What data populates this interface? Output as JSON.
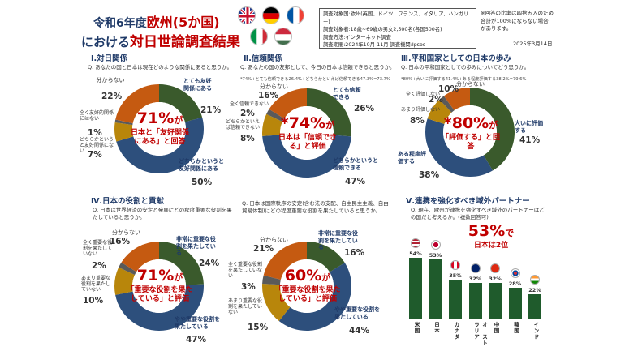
{
  "header": {
    "title_prefix": "令和6年度",
    "title_highlight": "欧州(5か国)",
    "title2_prefix": "における",
    "title2_highlight": "対日世論調査結果",
    "flags": [
      "uk-flag",
      "germany-flag",
      "france-flag",
      "italy-flag",
      "hungary-flag"
    ]
  },
  "survey_info": {
    "line1": "調査対象国:欧州(英国、ドイツ、フランス、イタリア、ハンガリー)",
    "line2": "調査対象者:18歳~69歳の男女2,500名(各国500名)",
    "line3": "調査方法:インターネット調査",
    "line4": "調査期間:2024年10月-11月 調査機関:Ipsos"
  },
  "note": "※回答の比率は四捨五入のため合計が100%にならない場合があります。",
  "date": "2025年3月14日",
  "sections": {
    "s1": {
      "title": "Ⅰ.対日関係",
      "question": "Q. あなたの国と日本は現在どのような関係にあると思うか。",
      "center_big": "71%",
      "center_suffix": "が",
      "center_text": "日本と「友好関係にある」と回答",
      "segments": [
        {
          "label": "とても友好関係にある",
          "pct": "21%",
          "color": "#3a5a2c"
        },
        {
          "label": "どちらかというと友好関係にある",
          "pct": "50%",
          "color": "#2d4f7c"
        },
        {
          "label": "どちらかというと友好関係にない",
          "pct": "7%",
          "color": "#b8860b"
        },
        {
          "label": "全く友好的関係にはない",
          "pct": "1%",
          "color": "#5a5a5a"
        },
        {
          "label": "分からない",
          "pct": "22%",
          "color": "#c55a11"
        }
      ]
    },
    "s2": {
      "title": "Ⅱ.信頼関係",
      "question": "Q. あなたの国の友邦として、今日の日本は信頼できると思うか。",
      "footnote": "*74%+とても信頼できる26.4%+どちらかといえば信頼できる47.3%=73.7%",
      "center_big": "*74%",
      "center_suffix": "が",
      "center_text": "日本は「信頼できる」と評価",
      "segments": [
        {
          "label": "とても信頼できる",
          "pct": "26%",
          "color": "#3a5a2c"
        },
        {
          "label": "どちらかというと信頼できる",
          "pct": "47%",
          "color": "#2d4f7c"
        },
        {
          "label": "どちらかといえば信頼できない",
          "pct": "8%",
          "color": "#b8860b"
        },
        {
          "label": "全く信頼できない",
          "pct": "2%",
          "color": "#5a5a5a"
        },
        {
          "label": "分からない",
          "pct": "16%",
          "color": "#c55a11"
        }
      ]
    },
    "s3": {
      "title": "Ⅲ.平和国家としての日本の歩み",
      "question": "Q. 日本の平和国家としての歩みについてどう思うか。",
      "footnote": "*80%+大いに評価する41.4%+ある程度評価する38.2%=79.6%",
      "center_big": "*80%",
      "center_suffix": "が",
      "center_text": "「評価する」と回答",
      "segments": [
        {
          "label": "大いに評価する",
          "pct": "41%",
          "color": "#3a5a2c"
        },
        {
          "label": "ある程度評価する",
          "pct": "38%",
          "color": "#2d4f7c"
        },
        {
          "label": "あまり評価しない",
          "pct": "8%",
          "color": "#b8860b"
        },
        {
          "label": "全く評価しない",
          "pct": "2%",
          "color": "#5a5a5a"
        },
        {
          "label": "分からない",
          "pct": "10%",
          "color": "#c55a11"
        }
      ]
    },
    "s4": {
      "title": "Ⅳ.日本の役割と貢献",
      "question": "Q. 日本は世界経済の安定と発展にどの程度重要な役割を果たしていると思うか。",
      "center_big": "71%",
      "center_suffix": "が",
      "center_text": "「重要な役割を果たしている」と評価",
      "segments": [
        {
          "label": "非常に重要な役割を果たしている",
          "pct": "24%",
          "color": "#3a5a2c"
        },
        {
          "label": "やや重要な役割を果たしている",
          "pct": "47%",
          "color": "#2d4f7c"
        },
        {
          "label": "あまり重要な役割を果たしていない",
          "pct": "10%",
          "color": "#b8860b"
        },
        {
          "label": "全く重要な役割を果たしていない",
          "pct": "2%",
          "color": "#5a5a5a"
        },
        {
          "label": "分からない",
          "pct": "16%",
          "color": "#c55a11"
        }
      ]
    },
    "s5": {
      "question": "Q. 日本は国際秩序の安定(含む法の支配、自由民主主義、自由貿易体制)にどの程度重要な役割を果たしていると思うか。",
      "center_big": "60%",
      "center_suffix": "が",
      "center_text": "「重要な役割を果たしている」と評価",
      "segments": [
        {
          "label": "非常に重要な役割を果たしている",
          "pct": "16%",
          "color": "#3a5a2c"
        },
        {
          "label": "やや重要な役割を果たしている",
          "pct": "44%",
          "color": "#2d4f7c"
        },
        {
          "label": "あまり重要な役割を果たしていない",
          "pct": "15%",
          "color": "#b8860b"
        },
        {
          "label": "全く重要な役割を果たしていない",
          "pct": "3%",
          "color": "#5a5a5a"
        },
        {
          "label": "分からない",
          "pct": "21%",
          "color": "#c55a11"
        }
      ]
    },
    "s6": {
      "title": "Ⅴ.連携を強化すべき域外パートナー",
      "question": "Q. 現在、欧州が連携を強化すべき域外のパートナーはどの国だと考えるか。(複数回答可)",
      "highlight_big": "53%",
      "highlight_suffix": "で",
      "highlight_text": "日本は2位"
    }
  },
  "chart_data": [
    {
      "type": "pie",
      "title": "Ⅰ.対日関係",
      "categories": [
        "とても友好関係にある",
        "どちらかというと友好関係にある",
        "どちらかというと友好関係にない",
        "全く友好的関係にはない",
        "分からない"
      ],
      "values": [
        21,
        50,
        7,
        1,
        22
      ]
    },
    {
      "type": "pie",
      "title": "Ⅱ.信頼関係",
      "categories": [
        "とても信頼できる",
        "どちらかというと信頼できる",
        "どちらかといえば信頼できない",
        "全く信頼できない",
        "分からない"
      ],
      "values": [
        26,
        47,
        8,
        2,
        16
      ]
    },
    {
      "type": "pie",
      "title": "Ⅲ.平和国家としての日本の歩み",
      "categories": [
        "大いに評価する",
        "ある程度評価する",
        "あまり評価しない",
        "全く評価しない",
        "分からない"
      ],
      "values": [
        41,
        38,
        8,
        2,
        10
      ]
    },
    {
      "type": "pie",
      "title": "Ⅳ.日本の役割と貢献",
      "categories": [
        "非常に重要な役割を果たしている",
        "やや重要な役割を果たしている",
        "あまり重要な役割を果たしていない",
        "全く重要な役割を果たしていない",
        "分からない"
      ],
      "values": [
        24,
        47,
        10,
        2,
        16
      ]
    },
    {
      "type": "pie",
      "title": "",
      "categories": [
        "非常に重要な役割を果たしている",
        "やや重要な役割を果たしている",
        "あまり重要な役割を果たしていない",
        "全く重要な役割を果たしていない",
        "分からない"
      ],
      "values": [
        16,
        44,
        15,
        3,
        21
      ]
    },
    {
      "type": "bar",
      "title": "Ⅴ.連携を強化すべき域外パートナー",
      "categories": [
        "米国",
        "日本",
        "カナダ",
        "オーストラリア",
        "中国",
        "韓国",
        "インド"
      ],
      "values": [
        54,
        53,
        35,
        32,
        32,
        28,
        22
      ],
      "value_labels": [
        "54%",
        "53%",
        "35%",
        "32%",
        "32%",
        "28%",
        "22%"
      ],
      "ylim": [
        0,
        60
      ],
      "bar_color": "#1f5b2c"
    }
  ]
}
